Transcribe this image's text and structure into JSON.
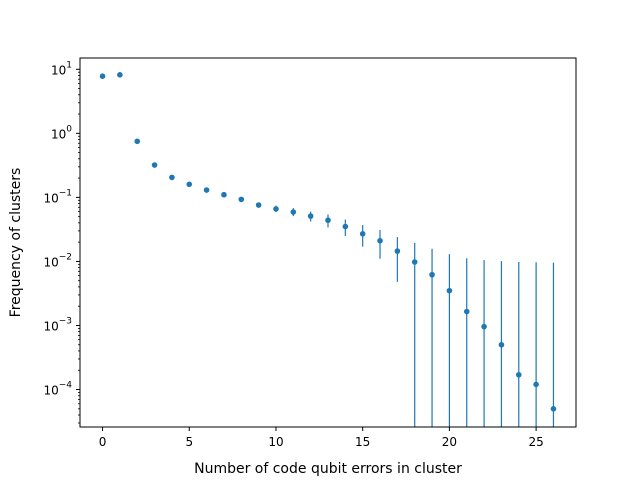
{
  "chart_data": {
    "type": "scatter",
    "xlabel": "Number of code qubit errors in cluster",
    "ylabel": "Frequency of clusters",
    "yscale": "log",
    "xlim": [
      -1.3,
      27.3
    ],
    "ylim": [
      2.6e-05,
      15
    ],
    "grid": false,
    "marker_color": "#1f77b4",
    "x_ticks": [
      0,
      5,
      10,
      15,
      20,
      25
    ],
    "x_tick_labels": [
      "0",
      "5",
      "10",
      "15",
      "20",
      "25"
    ],
    "y_ticks": [
      0.0001,
      0.001,
      0.01,
      0.1,
      1,
      10
    ],
    "y_tick_labels": [
      {
        "base": "10",
        "exp": "−4"
      },
      {
        "base": "10",
        "exp": "−3"
      },
      {
        "base": "10",
        "exp": "−2"
      },
      {
        "base": "10",
        "exp": "−1"
      },
      {
        "base": "10",
        "exp": "0"
      },
      {
        "base": "10",
        "exp": "1"
      }
    ],
    "points": [
      {
        "x": 0,
        "y": 7.8
      },
      {
        "x": 1,
        "y": 8.2
      },
      {
        "x": 2,
        "y": 0.75
      },
      {
        "x": 3,
        "y": 0.32
      },
      {
        "x": 4,
        "y": 0.205
      },
      {
        "x": 5,
        "y": 0.16
      },
      {
        "x": 6,
        "y": 0.13
      },
      {
        "x": 7,
        "y": 0.11
      },
      {
        "x": 8,
        "y": 0.093
      },
      {
        "x": 9,
        "y": 0.076,
        "err_lo": 0.069,
        "err_hi": 0.083
      },
      {
        "x": 10,
        "y": 0.066,
        "err_lo": 0.059,
        "err_hi": 0.074
      },
      {
        "x": 11,
        "y": 0.059,
        "err_lo": 0.051,
        "err_hi": 0.068
      },
      {
        "x": 12,
        "y": 0.051,
        "err_lo": 0.042,
        "err_hi": 0.06
      },
      {
        "x": 13,
        "y": 0.044,
        "err_lo": 0.034,
        "err_hi": 0.054
      },
      {
        "x": 14,
        "y": 0.035,
        "err_lo": 0.025,
        "err_hi": 0.045
      },
      {
        "x": 15,
        "y": 0.027,
        "err_lo": 0.017,
        "err_hi": 0.037
      },
      {
        "x": 16,
        "y": 0.021,
        "err_lo": 0.011,
        "err_hi": 0.031
      },
      {
        "x": 17,
        "y": 0.0145,
        "err_lo": 0.0048,
        "err_hi": 0.024
      },
      {
        "x": 18,
        "y": 0.0098,
        "err_lo": 2.6e-05,
        "err_hi": 0.0195
      },
      {
        "x": 19,
        "y": 0.0062,
        "err_lo": 2.6e-05,
        "err_hi": 0.0158
      },
      {
        "x": 20,
        "y": 0.0035,
        "err_lo": 2.6e-05,
        "err_hi": 0.013
      },
      {
        "x": 21,
        "y": 0.00165,
        "err_lo": 2.6e-05,
        "err_hi": 0.0112
      },
      {
        "x": 22,
        "y": 0.00096,
        "err_lo": 2.6e-05,
        "err_hi": 0.0105
      },
      {
        "x": 23,
        "y": 0.0005,
        "err_lo": 2.6e-05,
        "err_hi": 0.0101
      },
      {
        "x": 24,
        "y": 0.00017,
        "err_lo": 2.6e-05,
        "err_hi": 0.0098
      },
      {
        "x": 25,
        "y": 0.00012,
        "err_lo": 2.6e-05,
        "err_hi": 0.0097
      },
      {
        "x": 26,
        "y": 5e-05,
        "err_lo": 2.6e-05,
        "err_hi": 0.0096
      }
    ]
  }
}
